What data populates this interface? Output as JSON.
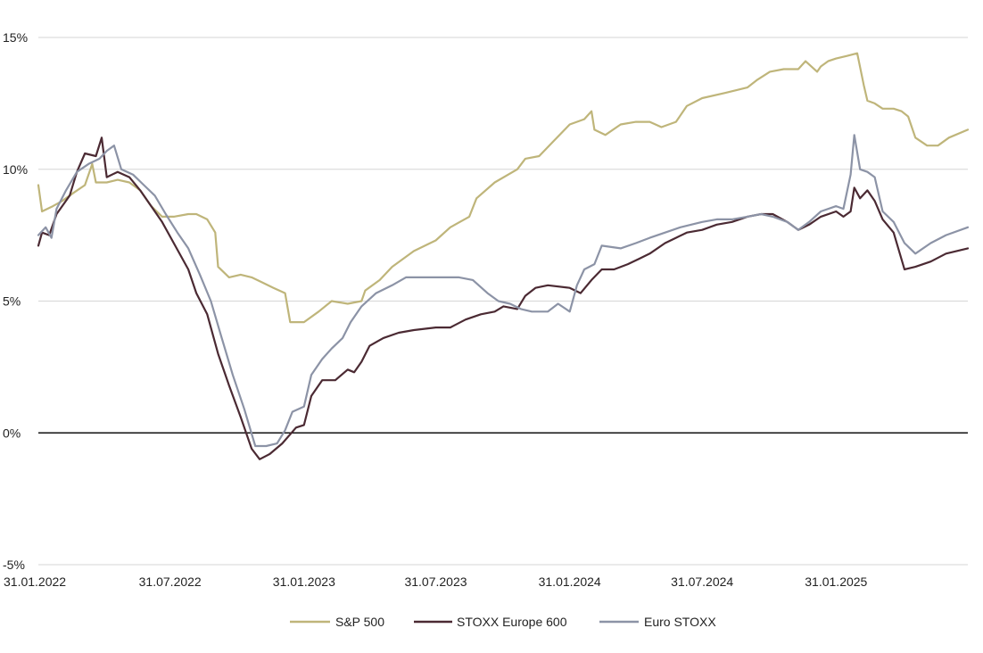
{
  "chart_data": {
    "type": "line",
    "title": "",
    "xlabel": "",
    "ylabel": "",
    "ylim": [
      -5,
      15
    ],
    "xlim": [
      "31.01.2022",
      "31.07.2025"
    ],
    "yticks": [
      {
        "value": -5,
        "label": "-5%"
      },
      {
        "value": 0,
        "label": "0%"
      },
      {
        "value": 5,
        "label": "5%"
      },
      {
        "value": 10,
        "label": "10%"
      },
      {
        "value": 15,
        "label": "15%"
      }
    ],
    "xticks": [
      {
        "date": "2022-01-31",
        "label": "31.01.2022"
      },
      {
        "date": "2022-07-31",
        "label": "31.07.2022"
      },
      {
        "date": "2023-01-31",
        "label": "31.01.2023"
      },
      {
        "date": "2023-07-31",
        "label": "31.07.2023"
      },
      {
        "date": "2024-01-31",
        "label": "31.01.2024"
      },
      {
        "date": "2024-07-31",
        "label": "31.07.2024"
      },
      {
        "date": "2025-01-31",
        "label": "31.01.2025"
      }
    ],
    "grid": true,
    "zero_line": true,
    "legend": "bottom-center",
    "series": [
      {
        "name": "S&P 500",
        "color": "#bfb57a",
        "points": [
          [
            "2022-01-31",
            9.4
          ],
          [
            "2022-02-05",
            8.4
          ],
          [
            "2022-02-20",
            8.6
          ],
          [
            "2022-03-05",
            8.8
          ],
          [
            "2022-03-20",
            9.1
          ],
          [
            "2022-04-05",
            9.4
          ],
          [
            "2022-04-15",
            10.2
          ],
          [
            "2022-04-20",
            9.5
          ],
          [
            "2022-05-05",
            9.5
          ],
          [
            "2022-05-20",
            9.6
          ],
          [
            "2022-06-05",
            9.5
          ],
          [
            "2022-06-20",
            9.2
          ],
          [
            "2022-07-05",
            8.6
          ],
          [
            "2022-07-20",
            8.2
          ],
          [
            "2022-08-05",
            8.2
          ],
          [
            "2022-08-25",
            8.3
          ],
          [
            "2022-09-05",
            8.3
          ],
          [
            "2022-09-20",
            8.1
          ],
          [
            "2022-10-01",
            7.6
          ],
          [
            "2022-10-05",
            6.3
          ],
          [
            "2022-10-20",
            5.9
          ],
          [
            "2022-11-05",
            6.0
          ],
          [
            "2022-11-20",
            5.9
          ],
          [
            "2022-12-05",
            5.7
          ],
          [
            "2022-12-20",
            5.5
          ],
          [
            "2023-01-05",
            5.3
          ],
          [
            "2023-01-12",
            4.2
          ],
          [
            "2023-01-31",
            4.2
          ],
          [
            "2023-02-20",
            4.6
          ],
          [
            "2023-03-10",
            5.0
          ],
          [
            "2023-04-01",
            4.9
          ],
          [
            "2023-04-20",
            5.0
          ],
          [
            "2023-04-25",
            5.4
          ],
          [
            "2023-05-15",
            5.8
          ],
          [
            "2023-06-01",
            6.3
          ],
          [
            "2023-07-01",
            6.9
          ],
          [
            "2023-07-31",
            7.3
          ],
          [
            "2023-08-20",
            7.8
          ],
          [
            "2023-09-15",
            8.2
          ],
          [
            "2023-09-25",
            8.9
          ],
          [
            "2023-10-20",
            9.5
          ],
          [
            "2023-11-20",
            10.0
          ],
          [
            "2023-12-01",
            10.4
          ],
          [
            "2023-12-20",
            10.5
          ],
          [
            "2024-01-10",
            11.1
          ],
          [
            "2024-01-31",
            11.7
          ],
          [
            "2024-02-20",
            11.9
          ],
          [
            "2024-03-01",
            12.2
          ],
          [
            "2024-03-05",
            11.5
          ],
          [
            "2024-03-20",
            11.3
          ],
          [
            "2024-04-10",
            11.7
          ],
          [
            "2024-05-01",
            11.8
          ],
          [
            "2024-05-20",
            11.8
          ],
          [
            "2024-06-05",
            11.6
          ],
          [
            "2024-06-25",
            11.8
          ],
          [
            "2024-07-10",
            12.4
          ],
          [
            "2024-07-31",
            12.7
          ],
          [
            "2024-09-01",
            12.9
          ],
          [
            "2024-10-01",
            13.1
          ],
          [
            "2024-10-15",
            13.4
          ],
          [
            "2024-11-01",
            13.7
          ],
          [
            "2024-11-20",
            13.8
          ],
          [
            "2024-12-10",
            13.8
          ],
          [
            "2024-12-20",
            14.1
          ],
          [
            "2025-01-05",
            13.7
          ],
          [
            "2025-01-10",
            13.9
          ],
          [
            "2025-01-20",
            14.1
          ],
          [
            "2025-01-31",
            14.2
          ],
          [
            "2025-02-15",
            14.3
          ],
          [
            "2025-03-01",
            14.4
          ],
          [
            "2025-03-10",
            13.2
          ],
          [
            "2025-03-15",
            12.6
          ],
          [
            "2025-03-25",
            12.5
          ],
          [
            "2025-04-05",
            12.3
          ],
          [
            "2025-04-20",
            12.3
          ],
          [
            "2025-05-01",
            12.2
          ],
          [
            "2025-05-10",
            12.0
          ],
          [
            "2025-05-20",
            11.2
          ],
          [
            "2025-06-05",
            10.9
          ],
          [
            "2025-06-20",
            10.9
          ],
          [
            "2025-07-05",
            11.2
          ],
          [
            "2025-07-31",
            11.5
          ]
        ]
      },
      {
        "name": "STOXX Europe 600",
        "color": "#4b2a33",
        "points": [
          [
            "2022-01-31",
            7.1
          ],
          [
            "2022-02-05",
            7.6
          ],
          [
            "2022-02-15",
            7.5
          ],
          [
            "2022-02-25",
            8.3
          ],
          [
            "2022-03-15",
            9.0
          ],
          [
            "2022-03-25",
            9.9
          ],
          [
            "2022-04-05",
            10.6
          ],
          [
            "2022-04-20",
            10.5
          ],
          [
            "2022-04-28",
            11.2
          ],
          [
            "2022-05-05",
            9.7
          ],
          [
            "2022-05-20",
            9.9
          ],
          [
            "2022-06-05",
            9.7
          ],
          [
            "2022-06-20",
            9.2
          ],
          [
            "2022-07-05",
            8.6
          ],
          [
            "2022-07-20",
            8.0
          ],
          [
            "2022-08-05",
            7.2
          ],
          [
            "2022-08-25",
            6.2
          ],
          [
            "2022-09-05",
            5.3
          ],
          [
            "2022-09-20",
            4.5
          ],
          [
            "2022-10-05",
            3.0
          ],
          [
            "2022-10-20",
            1.8
          ],
          [
            "2022-11-05",
            0.6
          ],
          [
            "2022-11-20",
            -0.6
          ],
          [
            "2022-12-01",
            -1.0
          ],
          [
            "2022-12-15",
            -0.8
          ],
          [
            "2023-01-01",
            -0.4
          ],
          [
            "2023-01-20",
            0.2
          ],
          [
            "2023-01-31",
            0.3
          ],
          [
            "2023-02-10",
            1.4
          ],
          [
            "2023-02-25",
            2.0
          ],
          [
            "2023-03-15",
            2.0
          ],
          [
            "2023-04-01",
            2.4
          ],
          [
            "2023-04-10",
            2.3
          ],
          [
            "2023-04-20",
            2.7
          ],
          [
            "2023-05-01",
            3.3
          ],
          [
            "2023-05-20",
            3.6
          ],
          [
            "2023-06-10",
            3.8
          ],
          [
            "2023-07-01",
            3.9
          ],
          [
            "2023-07-31",
            4.0
          ],
          [
            "2023-08-20",
            4.0
          ],
          [
            "2023-09-10",
            4.3
          ],
          [
            "2023-10-01",
            4.5
          ],
          [
            "2023-10-20",
            4.6
          ],
          [
            "2023-11-01",
            4.8
          ],
          [
            "2023-11-20",
            4.7
          ],
          [
            "2023-12-01",
            5.2
          ],
          [
            "2023-12-15",
            5.5
          ],
          [
            "2024-01-01",
            5.6
          ],
          [
            "2024-01-31",
            5.5
          ],
          [
            "2024-02-15",
            5.3
          ],
          [
            "2024-03-01",
            5.8
          ],
          [
            "2024-03-15",
            6.2
          ],
          [
            "2024-04-01",
            6.2
          ],
          [
            "2024-04-20",
            6.4
          ],
          [
            "2024-05-05",
            6.6
          ],
          [
            "2024-05-20",
            6.8
          ],
          [
            "2024-06-10",
            7.2
          ],
          [
            "2024-06-25",
            7.4
          ],
          [
            "2024-07-10",
            7.6
          ],
          [
            "2024-07-31",
            7.7
          ],
          [
            "2024-08-20",
            7.9
          ],
          [
            "2024-09-10",
            8.0
          ],
          [
            "2024-10-01",
            8.2
          ],
          [
            "2024-10-20",
            8.3
          ],
          [
            "2024-11-05",
            8.3
          ],
          [
            "2024-11-25",
            8.0
          ],
          [
            "2024-12-10",
            7.7
          ],
          [
            "2024-12-25",
            7.9
          ],
          [
            "2025-01-10",
            8.2
          ],
          [
            "2025-01-31",
            8.4
          ],
          [
            "2025-02-10",
            8.2
          ],
          [
            "2025-02-20",
            8.4
          ],
          [
            "2025-02-25",
            9.3
          ],
          [
            "2025-03-05",
            8.9
          ],
          [
            "2025-03-15",
            9.2
          ],
          [
            "2025-03-25",
            8.8
          ],
          [
            "2025-04-05",
            8.1
          ],
          [
            "2025-04-20",
            7.6
          ],
          [
            "2025-05-05",
            6.2
          ],
          [
            "2025-05-20",
            6.3
          ],
          [
            "2025-06-10",
            6.5
          ],
          [
            "2025-07-01",
            6.8
          ],
          [
            "2025-07-31",
            7.0
          ]
        ]
      },
      {
        "name": "Euro STOXX",
        "color": "#8c93a6",
        "points": [
          [
            "2022-01-31",
            7.5
          ],
          [
            "2022-02-10",
            7.8
          ],
          [
            "2022-02-18",
            7.4
          ],
          [
            "2022-02-25",
            8.5
          ],
          [
            "2022-03-10",
            9.2
          ],
          [
            "2022-03-25",
            9.9
          ],
          [
            "2022-04-10",
            10.2
          ],
          [
            "2022-04-25",
            10.4
          ],
          [
            "2022-05-05",
            10.7
          ],
          [
            "2022-05-15",
            10.9
          ],
          [
            "2022-05-25",
            10.0
          ],
          [
            "2022-06-10",
            9.8
          ],
          [
            "2022-06-25",
            9.4
          ],
          [
            "2022-07-10",
            9.0
          ],
          [
            "2022-07-25",
            8.3
          ],
          [
            "2022-08-10",
            7.6
          ],
          [
            "2022-08-25",
            7.0
          ],
          [
            "2022-09-10",
            6.0
          ],
          [
            "2022-09-25",
            5.0
          ],
          [
            "2022-10-10",
            3.6
          ],
          [
            "2022-10-25",
            2.2
          ],
          [
            "2022-11-10",
            0.9
          ],
          [
            "2022-11-25",
            -0.5
          ],
          [
            "2022-12-10",
            -0.5
          ],
          [
            "2022-12-25",
            -0.4
          ],
          [
            "2023-01-05",
            0.1
          ],
          [
            "2023-01-15",
            0.8
          ],
          [
            "2023-01-31",
            1.0
          ],
          [
            "2023-02-10",
            2.2
          ],
          [
            "2023-02-25",
            2.8
          ],
          [
            "2023-03-10",
            3.2
          ],
          [
            "2023-03-25",
            3.6
          ],
          [
            "2023-04-05",
            4.2
          ],
          [
            "2023-04-20",
            4.8
          ],
          [
            "2023-05-10",
            5.3
          ],
          [
            "2023-06-01",
            5.6
          ],
          [
            "2023-06-20",
            5.9
          ],
          [
            "2023-07-31",
            5.9
          ],
          [
            "2023-09-01",
            5.9
          ],
          [
            "2023-09-20",
            5.8
          ],
          [
            "2023-10-10",
            5.3
          ],
          [
            "2023-10-25",
            5.0
          ],
          [
            "2023-11-10",
            4.9
          ],
          [
            "2023-11-25",
            4.7
          ],
          [
            "2023-12-10",
            4.6
          ],
          [
            "2024-01-01",
            4.6
          ],
          [
            "2024-01-15",
            4.9
          ],
          [
            "2024-01-31",
            4.6
          ],
          [
            "2024-02-10",
            5.6
          ],
          [
            "2024-02-20",
            6.2
          ],
          [
            "2024-03-05",
            6.4
          ],
          [
            "2024-03-15",
            7.1
          ],
          [
            "2024-04-10",
            7.0
          ],
          [
            "2024-05-01",
            7.2
          ],
          [
            "2024-05-20",
            7.4
          ],
          [
            "2024-06-10",
            7.6
          ],
          [
            "2024-07-01",
            7.8
          ],
          [
            "2024-07-31",
            8.0
          ],
          [
            "2024-08-20",
            8.1
          ],
          [
            "2024-09-10",
            8.1
          ],
          [
            "2024-10-01",
            8.2
          ],
          [
            "2024-10-20",
            8.3
          ],
          [
            "2024-11-05",
            8.2
          ],
          [
            "2024-11-25",
            8.0
          ],
          [
            "2024-12-10",
            7.7
          ],
          [
            "2024-12-25",
            8.0
          ],
          [
            "2025-01-10",
            8.4
          ],
          [
            "2025-01-31",
            8.6
          ],
          [
            "2025-02-10",
            8.5
          ],
          [
            "2025-02-20",
            9.8
          ],
          [
            "2025-02-25",
            11.3
          ],
          [
            "2025-03-05",
            10.0
          ],
          [
            "2025-03-15",
            9.9
          ],
          [
            "2025-03-25",
            9.7
          ],
          [
            "2025-04-05",
            8.4
          ],
          [
            "2025-04-20",
            8.0
          ],
          [
            "2025-05-05",
            7.2
          ],
          [
            "2025-05-20",
            6.8
          ],
          [
            "2025-06-10",
            7.2
          ],
          [
            "2025-07-01",
            7.5
          ],
          [
            "2025-07-31",
            7.8
          ]
        ]
      }
    ]
  }
}
